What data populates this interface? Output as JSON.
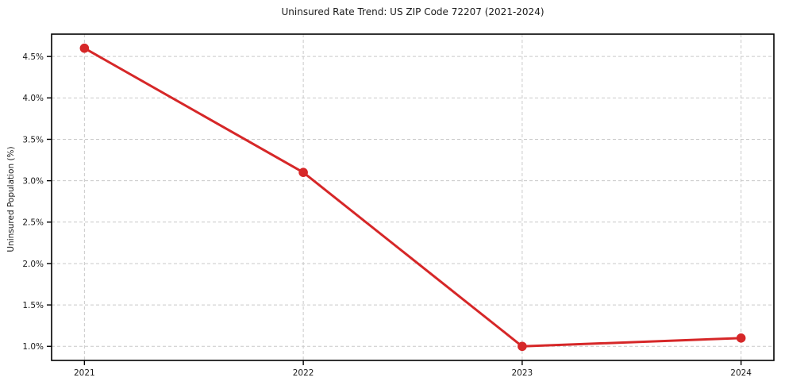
{
  "chart_data": {
    "type": "line",
    "title": "Uninsured Rate Trend: US ZIP Code 72207 (2021-2024)",
    "xlabel": "",
    "ylabel": "Uninsured Population (%)",
    "x": [
      2021,
      2022,
      2023,
      2024
    ],
    "x_tick_labels": [
      "2021",
      "2022",
      "2023",
      "2024"
    ],
    "y_ticks": [
      1.0,
      1.5,
      2.0,
      2.5,
      3.0,
      3.5,
      4.0,
      4.5
    ],
    "y_tick_labels": [
      "1.0%",
      "1.5%",
      "2.0%",
      "2.5%",
      "3.0%",
      "3.5%",
      "4.0%",
      "4.5%"
    ],
    "series": [
      {
        "name": "Uninsured rate",
        "values": [
          4.6,
          3.1,
          1.0,
          1.1
        ],
        "color": "#d62728",
        "marker": "circle"
      }
    ],
    "xlim": [
      2020.85,
      2024.15
    ],
    "ylim": [
      0.83,
      4.77
    ],
    "grid": true,
    "grid_style": "dashed",
    "legend": "none",
    "colors": {
      "line": "#d62728",
      "grid": "#c9c9c9",
      "axis": "#000000",
      "text": "#1a1a1a",
      "background": "#ffffff"
    }
  }
}
